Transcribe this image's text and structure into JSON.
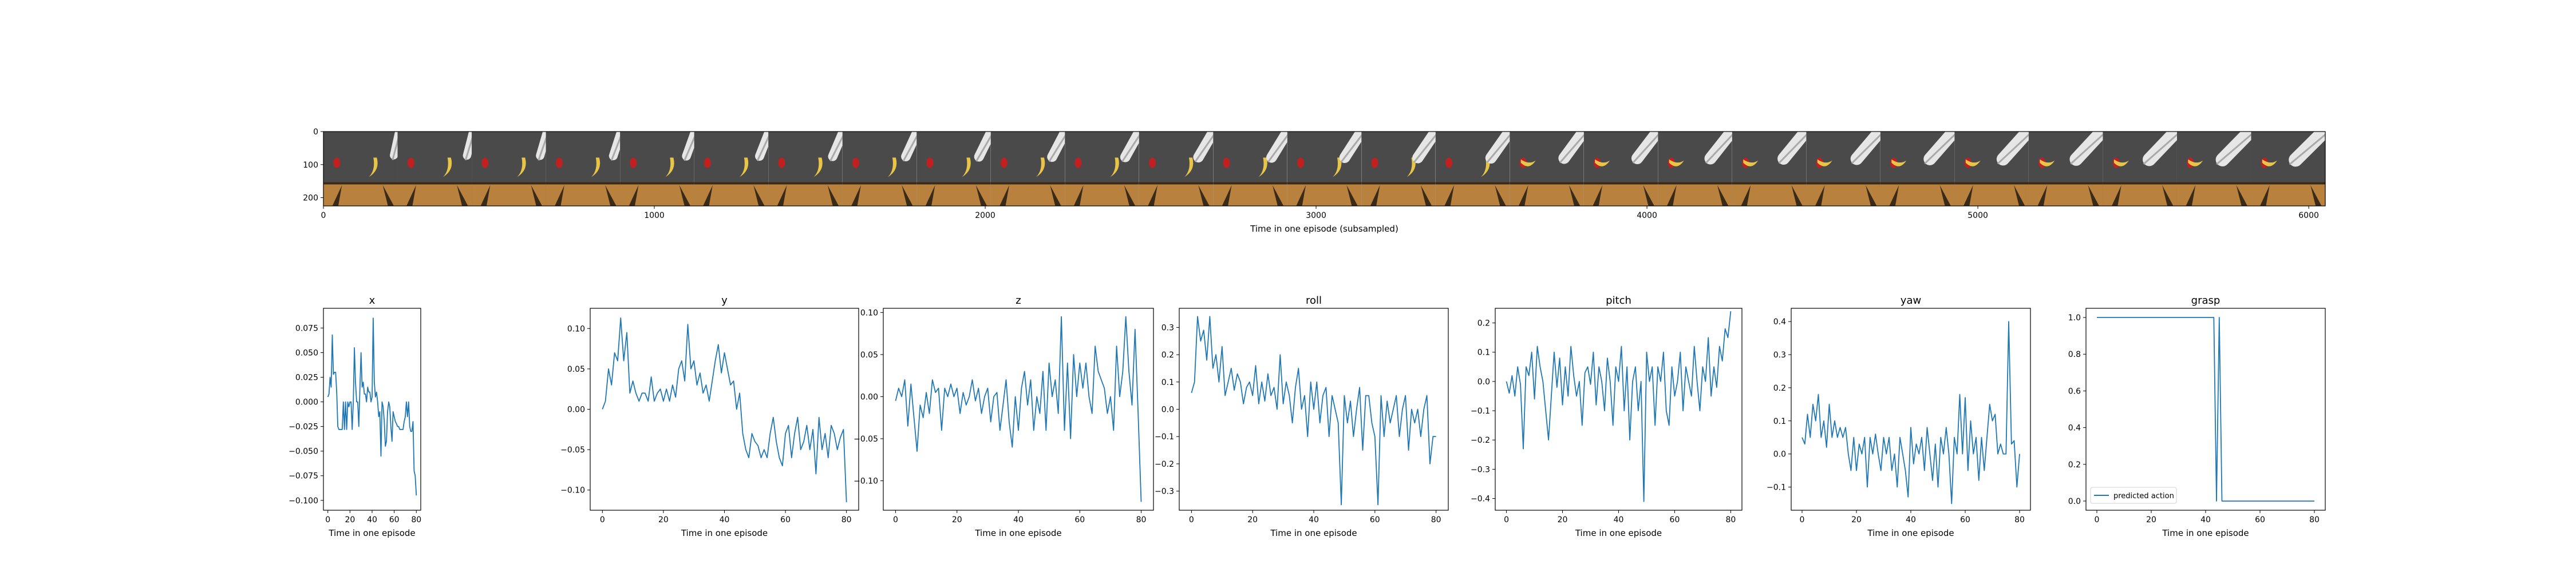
{
  "filmstrip": {
    "xlabel": "Time in one episode (subsampled)",
    "x_ticks": [
      0,
      1000,
      2000,
      3000,
      4000,
      5000,
      6000
    ],
    "y_ticks": [
      0,
      100,
      200
    ],
    "xlim": [
      0,
      6050
    ],
    "ylim": [
      225,
      0
    ],
    "frame_count": 27
  },
  "chart_data": [
    {
      "type": "line",
      "title": "x",
      "xlabel": "Time in one episode",
      "ylabel": "",
      "xlim": [
        -4,
        84
      ],
      "ylim": [
        -0.11,
        0.095
      ],
      "x_ticks": [
        0,
        20,
        40,
        60,
        80
      ],
      "y_ticks": [
        -0.1,
        -0.075,
        -0.05,
        -0.025,
        0.0,
        0.025,
        0.05,
        0.075
      ],
      "y_tick_labels": [
        "−0.100",
        "−0.075",
        "−0.050",
        "−0.025",
        "0.000",
        "0.025",
        "0.050",
        "0.075"
      ],
      "series": [
        {
          "values": [
            0.005,
            0.008,
            0.025,
            0.015,
            0.068,
            0.028,
            0.03,
            0.03,
            0.01,
            -0.025,
            -0.028,
            -0.028,
            -0.028,
            -0.028,
            0.0,
            -0.028,
            0.0,
            -0.028,
            0.0,
            -0.005,
            0.0,
            0.0,
            -0.028,
            0.0,
            0.055,
            0.02,
            0.0,
            0.0,
            -0.025,
            0.015,
            0.05,
            0.015,
            0.02,
            0.008,
            0.008,
            0.0,
            0.015,
            0.01,
            0.01,
            0.0,
            0.005,
            0.085,
            0.02,
            0.005,
            0.01,
            0.0,
            -0.015,
            -0.01,
            -0.055,
            0.0,
            -0.005,
            -0.02,
            -0.045,
            -0.04,
            -0.01,
            0.0,
            -0.005,
            -0.025,
            -0.04,
            -0.01,
            -0.015,
            -0.02,
            -0.022,
            -0.025,
            -0.025,
            -0.028,
            -0.028,
            -0.028,
            -0.028,
            -0.02,
            -0.015,
            0.0,
            -0.015,
            0.0,
            -0.025,
            -0.03,
            -0.03,
            -0.02,
            -0.07,
            -0.075,
            -0.095
          ]
        }
      ]
    },
    {
      "type": "line",
      "title": "y",
      "xlabel": "Time in one episode",
      "ylabel": "",
      "xlim": [
        -4,
        84
      ],
      "ylim": [
        -0.125,
        0.125
      ],
      "x_ticks": [
        0,
        20,
        40,
        60,
        80
      ],
      "y_ticks": [
        -0.1,
        -0.05,
        0.0,
        0.05,
        0.1
      ],
      "y_tick_labels": [
        "−0.10",
        "−0.05",
        "0.00",
        "0.05",
        "0.10"
      ],
      "series": [
        {
          "values": [
            0.0,
            0.01,
            0.05,
            0.03,
            0.07,
            0.06,
            0.113,
            0.06,
            0.095,
            0.02,
            0.035,
            0.02,
            0.01,
            0.02,
            0.02,
            0.01,
            0.04,
            0.01,
            0.02,
            0.025,
            0.01,
            0.025,
            0.01,
            0.03,
            0.015,
            0.05,
            0.06,
            0.035,
            0.105,
            0.05,
            0.06,
            0.03,
            0.045,
            0.02,
            0.03,
            0.01,
            0.035,
            0.06,
            0.08,
            0.045,
            0.07,
            0.05,
            0.03,
            0.035,
            0.0,
            0.02,
            -0.03,
            -0.05,
            -0.06,
            -0.03,
            -0.04,
            -0.045,
            -0.06,
            -0.05,
            -0.06,
            -0.03,
            -0.01,
            -0.04,
            -0.06,
            -0.07,
            -0.03,
            -0.02,
            -0.06,
            -0.03,
            -0.01,
            -0.05,
            -0.04,
            -0.02,
            -0.05,
            -0.025,
            -0.08,
            -0.01,
            -0.05,
            -0.03,
            -0.06,
            -0.02,
            -0.03,
            -0.05,
            -0.035,
            -0.025,
            -0.115
          ]
        }
      ]
    },
    {
      "type": "line",
      "title": "z",
      "xlabel": "Time in one episode",
      "ylabel": "",
      "xlim": [
        -4,
        84
      ],
      "ylim": [
        -0.135,
        0.105
      ],
      "x_ticks": [
        0,
        20,
        40,
        60,
        80
      ],
      "y_ticks": [
        -0.1,
        -0.05,
        0.0,
        0.05,
        0.1
      ],
      "y_tick_labels": [
        "−0.10",
        "−0.05",
        "0.00",
        "0.05",
        "0.10"
      ],
      "series": [
        {
          "values": [
            -0.005,
            0.01,
            0.0,
            0.02,
            -0.035,
            0.015,
            -0.025,
            -0.065,
            -0.01,
            -0.025,
            0.005,
            -0.02,
            0.02,
            0.005,
            0.01,
            -0.04,
            0.01,
            0.0,
            0.015,
            0.0,
            0.01,
            -0.02,
            0.005,
            -0.01,
            0.0,
            0.02,
            -0.005,
            0.01,
            -0.02,
            0.0,
            0.01,
            -0.03,
            0.0,
            0.005,
            -0.04,
            -0.01,
            0.02,
            -0.03,
            -0.06,
            0.0,
            -0.04,
            0.01,
            0.03,
            -0.01,
            0.02,
            -0.04,
            0.0,
            -0.02,
            0.03,
            -0.04,
            0.04,
            0.0,
            0.02,
            -0.02,
            0.095,
            -0.04,
            0.04,
            -0.05,
            0.05,
            0.0,
            0.04,
            0.01,
            0.04,
            0.0,
            -0.02,
            0.06,
            0.03,
            0.02,
            0.01,
            -0.02,
            0.0,
            -0.04,
            0.06,
            0.0,
            0.03,
            0.095,
            0.03,
            -0.01,
            0.08,
            -0.02,
            -0.125
          ]
        }
      ]
    },
    {
      "type": "line",
      "title": "roll",
      "xlabel": "Time in one episode",
      "ylabel": "",
      "xlim": [
        -4,
        84
      ],
      "ylim": [
        -0.37,
        0.37
      ],
      "x_ticks": [
        0,
        20,
        40,
        60,
        80
      ],
      "y_ticks": [
        -0.3,
        -0.2,
        -0.1,
        0.0,
        0.1,
        0.2,
        0.3
      ],
      "y_tick_labels": [
        "−0.3",
        "−0.2",
        "−0.1",
        "0.0",
        "0.1",
        "0.2",
        "0.3"
      ],
      "series": [
        {
          "values": [
            0.06,
            0.1,
            0.34,
            0.25,
            0.29,
            0.18,
            0.34,
            0.15,
            0.2,
            0.1,
            0.23,
            0.05,
            0.1,
            0.15,
            0.07,
            0.13,
            0.1,
            0.02,
            0.08,
            0.1,
            0.05,
            0.16,
            0.02,
            0.1,
            0.03,
            0.13,
            0.05,
            0.08,
            0.0,
            0.2,
            0.02,
            0.1,
            0.05,
            -0.05,
            0.08,
            0.15,
            0.0,
            0.05,
            -0.1,
            0.1,
            0.0,
            0.1,
            -0.05,
            0.05,
            0.08,
            -0.1,
            0.05,
            0.0,
            -0.05,
            -0.35,
            0.05,
            -0.05,
            0.03,
            -0.1,
            0.0,
            0.08,
            -0.15,
            0.05,
            0.05,
            -0.05,
            -0.1,
            -0.35,
            0.05,
            -0.1,
            0.03,
            -0.05,
            0.0,
            0.05,
            -0.1,
            0.0,
            0.05,
            -0.15,
            0.0,
            -0.05,
            0.0,
            -0.1,
            0.0,
            0.05,
            -0.2,
            -0.1,
            -0.1
          ]
        }
      ]
    },
    {
      "type": "line",
      "title": "pitch",
      "xlabel": "Time in one episode",
      "ylabel": "",
      "xlim": [
        -4,
        84
      ],
      "ylim": [
        -0.44,
        0.25
      ],
      "x_ticks": [
        0,
        20,
        40,
        60,
        80
      ],
      "y_ticks": [
        -0.4,
        -0.3,
        -0.2,
        -0.1,
        0.0,
        0.1,
        0.2
      ],
      "y_tick_labels": [
        "−0.4",
        "−0.3",
        "−0.2",
        "−0.1",
        "0.0",
        "0.1",
        "0.2"
      ],
      "series": [
        {
          "values": [
            0.0,
            -0.04,
            0.02,
            -0.05,
            0.05,
            -0.01,
            -0.23,
            0.05,
            0.02,
            0.1,
            -0.06,
            0.12,
            0.05,
            0.0,
            -0.1,
            -0.2,
            -0.05,
            0.1,
            -0.02,
            0.08,
            -0.08,
            0.05,
            -0.05,
            0.12,
            0.02,
            -0.05,
            0.0,
            -0.15,
            0.03,
            0.05,
            -0.01,
            0.1,
            -0.08,
            0.05,
            0.0,
            -0.1,
            0.08,
            0.0,
            -0.15,
            0.05,
            0.0,
            0.12,
            -0.1,
            0.05,
            -0.2,
            0.0,
            0.05,
            -0.1,
            0.0,
            -0.41,
            0.1,
            0.0,
            0.05,
            -0.15,
            0.05,
            0.0,
            0.1,
            -0.1,
            -0.15,
            0.05,
            -0.05,
            0.0,
            0.1,
            -0.1,
            0.05,
            0.0,
            -0.05,
            0.12,
            0.0,
            -0.1,
            0.05,
            0.0,
            0.15,
            -0.05,
            0.05,
            -0.02,
            0.12,
            0.07,
            0.18,
            0.15,
            0.24
          ]
        }
      ]
    },
    {
      "type": "line",
      "title": "yaw",
      "xlabel": "Time in one episode",
      "ylabel": "",
      "xlim": [
        -4,
        84
      ],
      "ylim": [
        -0.17,
        0.44
      ],
      "x_ticks": [
        0,
        20,
        40,
        60,
        80
      ],
      "y_ticks": [
        -0.1,
        0.0,
        0.1,
        0.2,
        0.3,
        0.4
      ],
      "y_tick_labels": [
        "−0.1",
        "0.0",
        "0.1",
        "0.2",
        "0.3",
        "0.4"
      ],
      "series": [
        {
          "values": [
            0.05,
            0.03,
            0.12,
            0.05,
            0.15,
            0.1,
            0.18,
            0.05,
            0.1,
            0.02,
            0.15,
            0.05,
            0.1,
            0.05,
            0.08,
            0.05,
            0.08,
            0.0,
            -0.05,
            0.05,
            -0.05,
            0.03,
            0.0,
            0.05,
            -0.1,
            0.05,
            0.0,
            0.06,
            0.0,
            -0.05,
            0.05,
            0.0,
            0.05,
            -0.05,
            0.0,
            -0.1,
            0.05,
            0.0,
            -0.05,
            -0.13,
            0.08,
            -0.03,
            0.03,
            0.0,
            0.05,
            -0.05,
            0.08,
            0.0,
            -0.08,
            0.03,
            -0.1,
            0.05,
            0.0,
            0.08,
            0.0,
            -0.15,
            0.05,
            0.0,
            0.18,
            0.0,
            0.17,
            -0.05,
            0.1,
            0.0,
            0.05,
            -0.08,
            0.05,
            -0.05,
            0.05,
            0.15,
            0.1,
            0.12,
            0.0,
            0.03,
            0.0,
            0.0,
            0.4,
            0.03,
            0.04,
            -0.1,
            0.0
          ]
        }
      ]
    },
    {
      "type": "line",
      "title": "grasp",
      "xlabel": "Time in one episode",
      "ylabel": "",
      "xlim": [
        -4,
        84
      ],
      "ylim": [
        -0.05,
        1.05
      ],
      "x_ticks": [
        0,
        20,
        40,
        60,
        80
      ],
      "y_ticks": [
        0.0,
        0.2,
        0.4,
        0.6,
        0.8,
        1.0
      ],
      "y_tick_labels": [
        "0.0",
        "0.2",
        "0.4",
        "0.6",
        "0.8",
        "1.0"
      ],
      "legend": "lower-left",
      "series": [
        {
          "name": "predicted action",
          "values": [
            1,
            1,
            1,
            1,
            1,
            1,
            1,
            1,
            1,
            1,
            1,
            1,
            1,
            1,
            1,
            1,
            1,
            1,
            1,
            1,
            1,
            1,
            1,
            1,
            1,
            1,
            1,
            1,
            1,
            1,
            1,
            1,
            1,
            1,
            1,
            1,
            1,
            1,
            1,
            1,
            1,
            1,
            1,
            1,
            0,
            1,
            0,
            0,
            0,
            0,
            0,
            0,
            0,
            0,
            0,
            0,
            0,
            0,
            0,
            0,
            0,
            0,
            0,
            0,
            0,
            0,
            0,
            0,
            0,
            0,
            0,
            0,
            0,
            0,
            0,
            0,
            0,
            0,
            0,
            0,
            0
          ]
        }
      ]
    }
  ],
  "colors": {
    "line": "#1f77b4",
    "axis": "#000000",
    "table_wood": "#b8823e",
    "table_dark": "#3a2a18",
    "table_leg": "#d9a25a",
    "wall": "#4a4a4a",
    "robot_arm": "#e6e6e6",
    "banana": "#e8c547",
    "red_object": "#c02020"
  }
}
